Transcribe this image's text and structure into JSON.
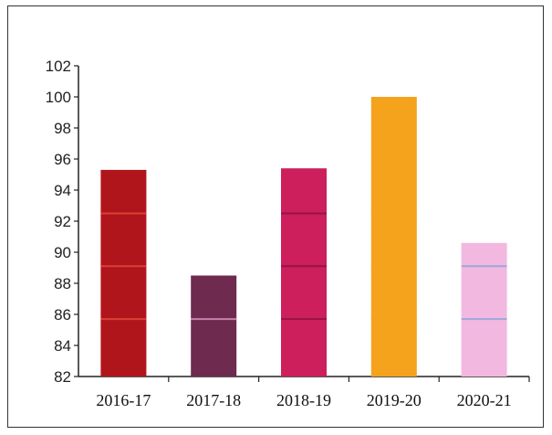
{
  "chart_data": {
    "type": "bar",
    "title": "",
    "xlabel": "",
    "ylabel": "",
    "categories": [
      "2016-17",
      "2017-18",
      "2018-19",
      "2019-20",
      "2020-21"
    ],
    "values": [
      95.3,
      88.5,
      95.4,
      100,
      90.6
    ],
    "colors": [
      "#b0151c",
      "#6e2a4f",
      "#cc1f5c",
      "#f5a21c",
      "#f2b8e0"
    ],
    "band_colors": [
      "#e84a3a",
      "#d998c4",
      "#8a1240",
      "#f5a21c",
      "#8aa3dd"
    ],
    "ylim": [
      82,
      102
    ],
    "yticks": [
      82,
      84,
      86,
      88,
      90,
      92,
      94,
      96,
      98,
      100,
      102
    ],
    "ytick_labels": [
      "82",
      "84",
      "86",
      "88",
      "90",
      "92",
      "94",
      "96",
      "98",
      "100",
      "102"
    ],
    "grid": false,
    "legend": "none"
  }
}
